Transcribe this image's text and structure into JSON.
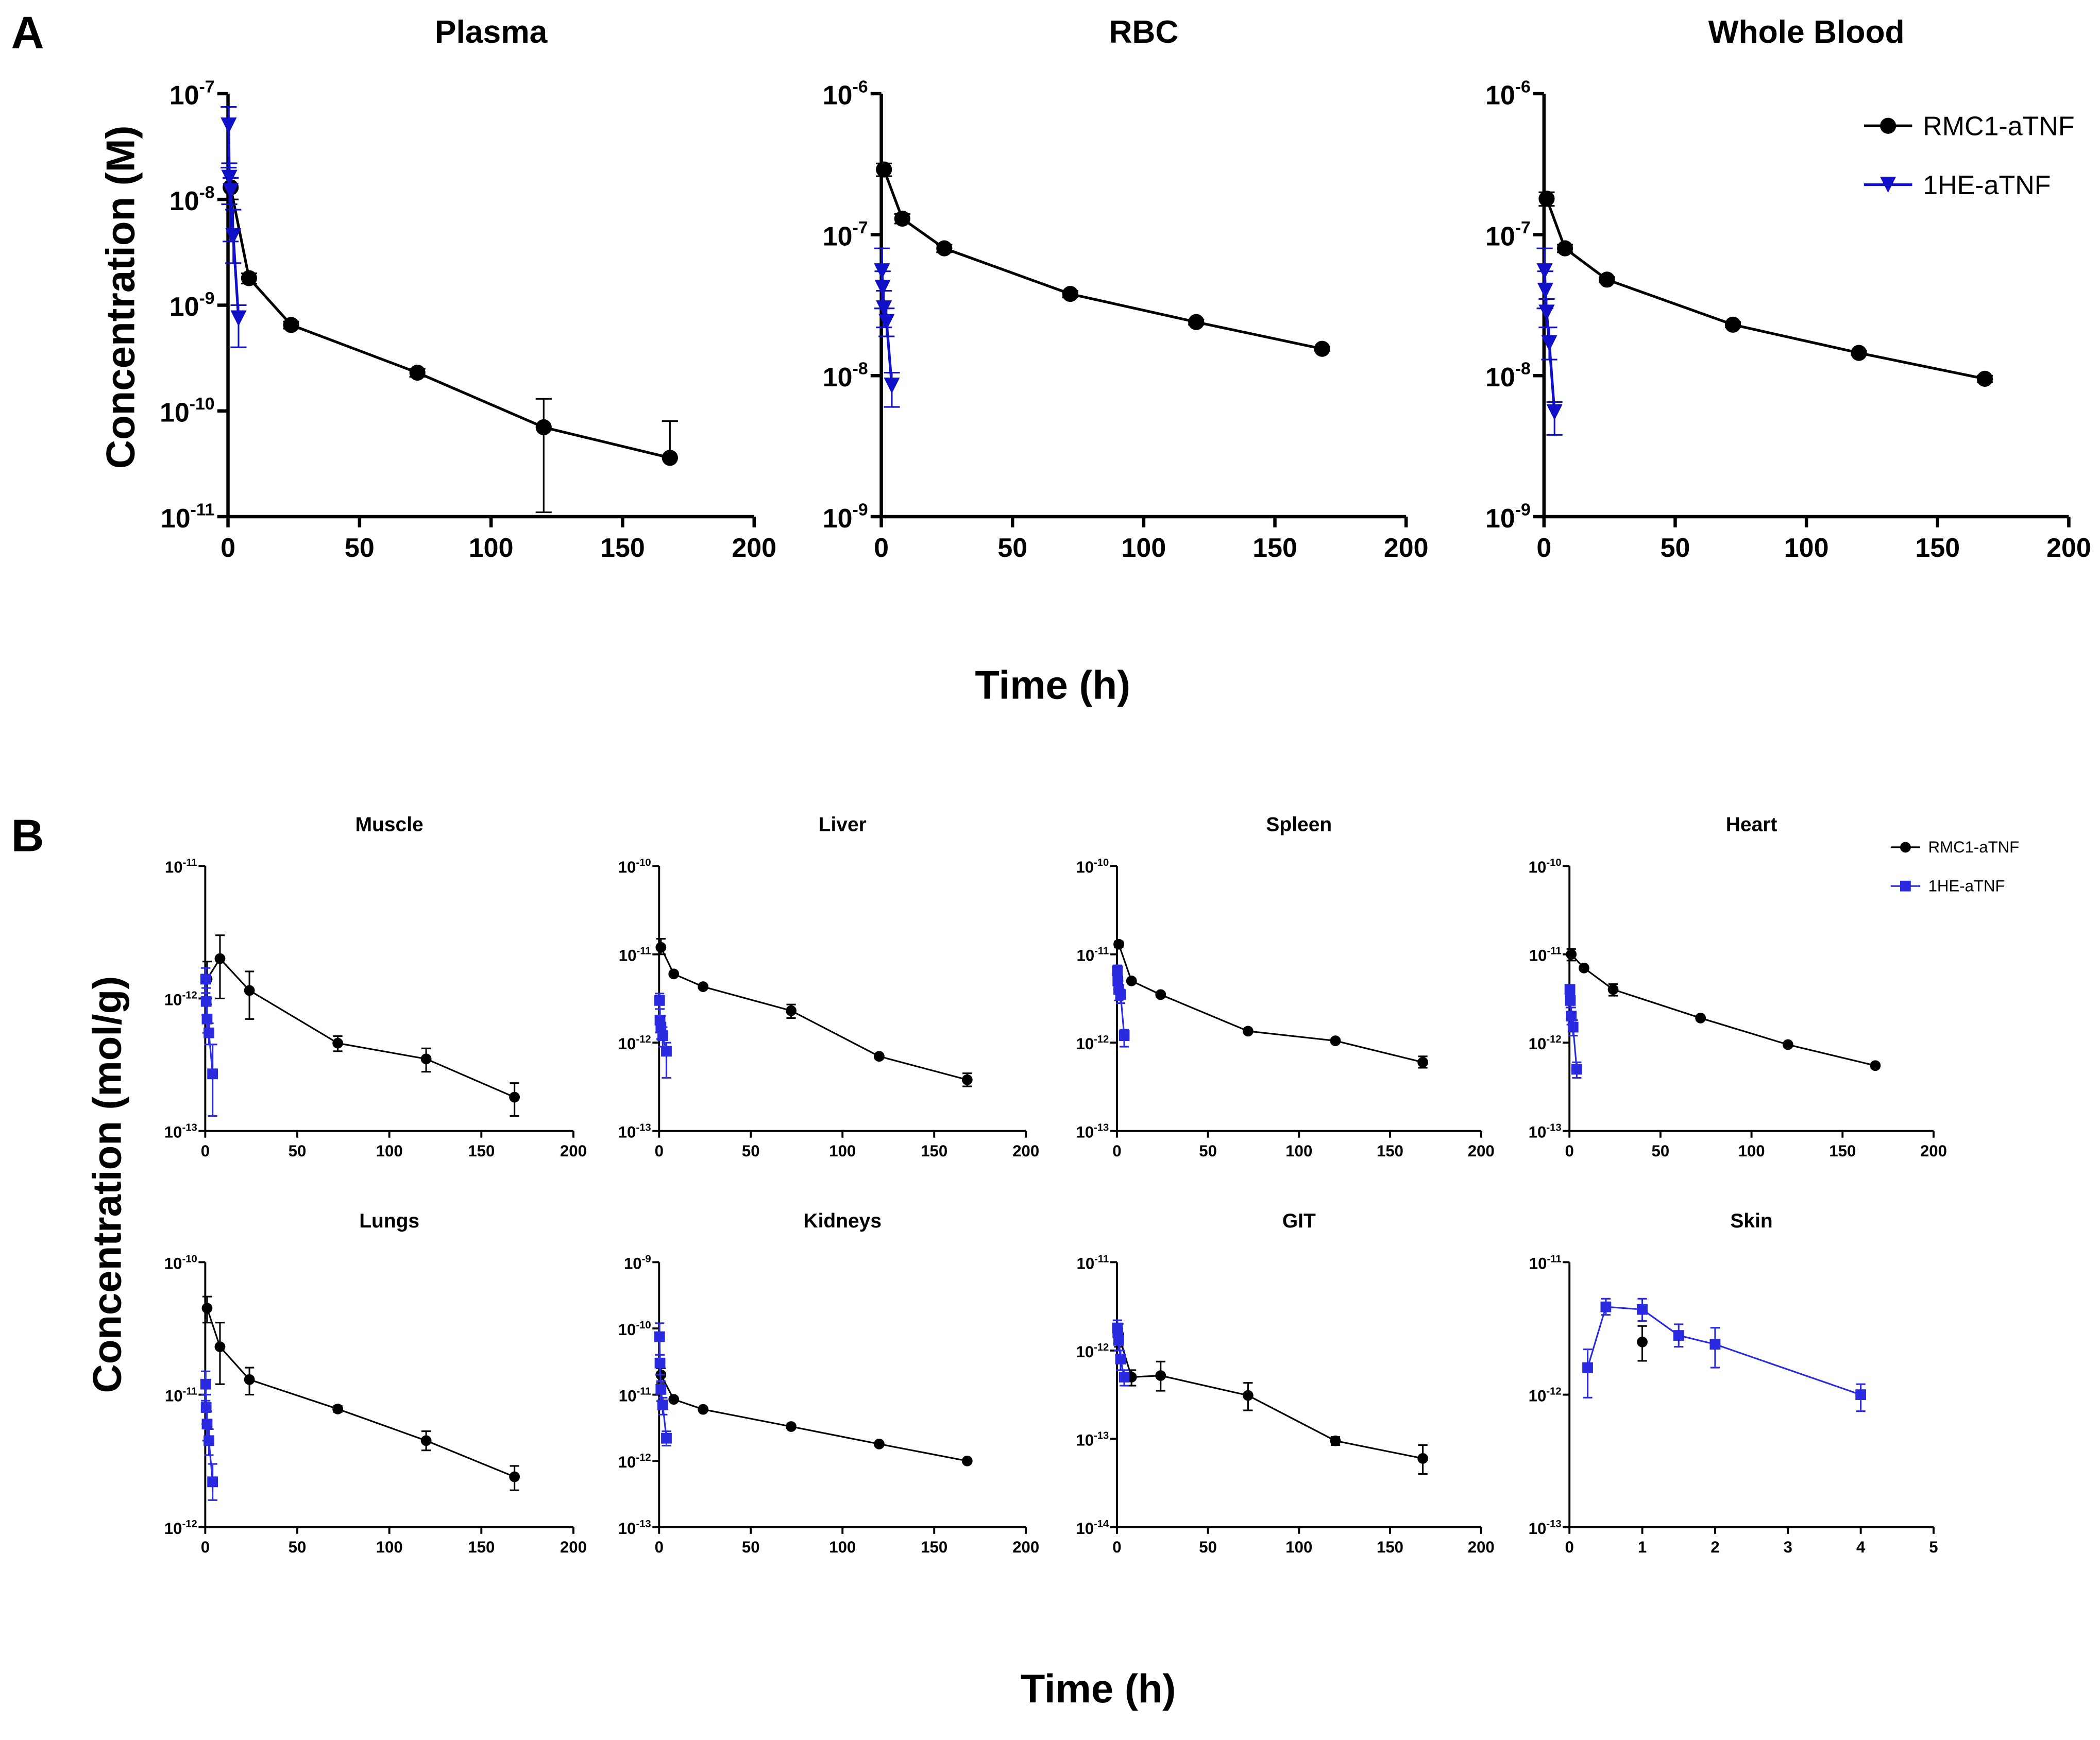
{
  "panel_labels": {
    "a": "A",
    "b": "B"
  },
  "panel_a": {
    "ylabel": "Concentration (M)",
    "xlabel": "Time (h)"
  },
  "panel_b": {
    "ylabel": "Concentration (mol/g)",
    "xlabel": "Time (h)"
  },
  "colors": {
    "rmc1": "#000000",
    "ohe_a": "#1010c8",
    "ohe_b": "#2a2ae0"
  },
  "chart_data": [
    {
      "type": "line",
      "panel": "A",
      "title": "Plasma",
      "yscale": "log",
      "ylim": [
        1e-11,
        1e-07
      ],
      "xlim": [
        0,
        200
      ],
      "xticks": [
        0,
        50,
        100,
        150,
        200
      ],
      "legend": null,
      "series": [
        {
          "name": "RMC1-aTNF",
          "marker": "circle",
          "x": [
            1,
            8,
            24,
            72,
            120,
            168
          ],
          "y": [
            1.3e-08,
            1.8e-09,
            6.5e-10,
            2.3e-10,
            7e-11,
            3.6e-11
          ],
          "err_hi": [
            1.6e-08,
            2e-09,
            7e-10,
            2.5e-10,
            1.3e-10,
            8e-11
          ],
          "err_lo": [
            1e-08,
            1.6e-09,
            6e-10,
            2.1e-10,
            1.1e-11,
            3.6e-11
          ]
        },
        {
          "name": "1HE-aTNF",
          "marker": "triangle-down",
          "x": [
            0.25,
            0.5,
            1,
            2,
            4
          ],
          "y": [
            5e-08,
            1.6e-08,
            1.2e-08,
            4.5e-09,
            7.5e-10
          ],
          "err_hi": [
            7.5e-08,
            2.2e-08,
            1.6e-08,
            8e-09,
            1e-09
          ],
          "err_lo": [
            2e-08,
            9e-09,
            4e-09,
            2.5e-09,
            4e-10
          ]
        }
      ]
    },
    {
      "type": "line",
      "panel": "A",
      "title": "RBC",
      "yscale": "log",
      "ylim": [
        1e-09,
        1e-06
      ],
      "xlim": [
        0,
        200
      ],
      "xticks": [
        0,
        50,
        100,
        150,
        200
      ],
      "legend": null,
      "series": [
        {
          "name": "RMC1-aTNF",
          "marker": "circle",
          "x": [
            1,
            8,
            24,
            72,
            120,
            168
          ],
          "y": [
            2.9e-07,
            1.3e-07,
            8e-08,
            3.8e-08,
            2.4e-08,
            1.55e-08
          ],
          "err_hi": [
            3.2e-07,
            1.4e-07,
            8.5e-08,
            4e-08,
            2.5e-08,
            1.6e-08
          ],
          "err_lo": [
            2.6e-07,
            1.2e-07,
            7.5e-08,
            3.6e-08,
            2.3e-08,
            1.5e-08
          ]
        },
        {
          "name": "1HE-aTNF",
          "marker": "triangle-down",
          "x": [
            0.25,
            0.5,
            1,
            2,
            4
          ],
          "y": [
            5.5e-08,
            4.2e-08,
            3e-08,
            2.4e-08,
            8.5e-09
          ],
          "err_hi": [
            8e-08,
            5.5e-08,
            4e-08,
            3e-08,
            1.05e-08
          ],
          "err_lo": [
            3e-08,
            3e-08,
            2.2e-08,
            1.9e-08,
            6e-09
          ]
        }
      ]
    },
    {
      "type": "line",
      "panel": "A",
      "title": "Whole Blood",
      "yscale": "log",
      "ylim": [
        1e-09,
        1e-06
      ],
      "xlim": [
        0,
        200
      ],
      "xticks": [
        0,
        50,
        100,
        150,
        200
      ],
      "legend": "top-right",
      "series": [
        {
          "name": "RMC1-aTNF",
          "marker": "circle",
          "x": [
            1,
            8,
            24,
            72,
            120,
            168
          ],
          "y": [
            1.8e-07,
            8e-08,
            4.8e-08,
            2.3e-08,
            1.45e-08,
            9.5e-09
          ],
          "err_hi": [
            2e-07,
            8.5e-08,
            5e-08,
            2.4e-08,
            1.5e-08,
            1e-08
          ],
          "err_lo": [
            1.6e-07,
            7.5e-08,
            4.6e-08,
            2.2e-08,
            1.4e-08,
            9e-09
          ]
        },
        {
          "name": "1HE-aTNF",
          "marker": "triangle-down",
          "x": [
            0.25,
            0.5,
            1,
            2,
            4
          ],
          "y": [
            5.5e-08,
            4e-08,
            2.8e-08,
            1.7e-08,
            5.5e-09
          ],
          "err_hi": [
            8e-08,
            5.5e-08,
            3.5e-08,
            2.2e-08,
            6.5e-09
          ],
          "err_lo": [
            3e-08,
            3e-08,
            2.2e-08,
            1.3e-08,
            3.8e-09
          ]
        }
      ]
    },
    {
      "type": "line",
      "panel": "B",
      "title": "Muscle",
      "yscale": "log",
      "ylim": [
        1e-13,
        1e-11
      ],
      "xlim": [
        0,
        200
      ],
      "xticks": [
        0,
        50,
        100,
        150,
        200
      ],
      "legend": null,
      "series": [
        {
          "name": "RMC1-aTNF",
          "marker": "circle",
          "x": [
            1,
            8,
            24,
            72,
            120,
            168
          ],
          "y": [
            1.4e-12,
            2e-12,
            1.15e-12,
            4.6e-13,
            3.5e-13,
            1.8e-13
          ],
          "err_hi": [
            1.9e-12,
            3e-12,
            1.6e-12,
            5.2e-13,
            4.2e-13,
            2.3e-13
          ],
          "err_lo": [
            1e-12,
            1e-12,
            7e-13,
            4e-13,
            2.8e-13,
            1.3e-13
          ]
        },
        {
          "name": "1HE-aTNF",
          "marker": "square",
          "x": [
            0.25,
            0.5,
            1,
            2,
            4
          ],
          "y": [
            1.4e-12,
            9.5e-13,
            7e-13,
            5.5e-13,
            2.7e-13
          ],
          "err_hi": [
            1.7e-12,
            1.2e-12,
            9e-13,
            6.5e-13,
            4.5e-13
          ],
          "err_lo": [
            1.1e-12,
            7.5e-13,
            5.5e-13,
            4.5e-13,
            1.3e-13
          ]
        }
      ]
    },
    {
      "type": "line",
      "panel": "B",
      "title": "Liver",
      "yscale": "log",
      "ylim": [
        1e-13,
        1e-10
      ],
      "xlim": [
        0,
        200
      ],
      "xticks": [
        0,
        50,
        100,
        150,
        200
      ],
      "legend": null,
      "series": [
        {
          "name": "RMC1-aTNF",
          "marker": "circle",
          "x": [
            1,
            8,
            24,
            72,
            120,
            168
          ],
          "y": [
            1.2e-11,
            6e-12,
            4.3e-12,
            2.3e-12,
            7e-13,
            3.8e-13
          ],
          "err_hi": [
            1.5e-11,
            6.3e-12,
            4.5e-12,
            2.7e-12,
            7.4e-13,
            4.5e-13
          ],
          "err_lo": [
            1e-11,
            5.7e-12,
            4.1e-12,
            1.9e-12,
            6.6e-13,
            3.2e-13
          ]
        },
        {
          "name": "1HE-aTNF",
          "marker": "square",
          "x": [
            0.25,
            0.5,
            1,
            2,
            4
          ],
          "y": [
            3e-12,
            1.8e-12,
            1.5e-12,
            1.2e-12,
            8e-13
          ],
          "err_hi": [
            3.6e-12,
            2.4e-12,
            2e-12,
            1.5e-12,
            1e-12
          ],
          "err_lo": [
            2.4e-12,
            1.3e-12,
            1.1e-12,
            9e-13,
            4e-13
          ]
        }
      ]
    },
    {
      "type": "line",
      "panel": "B",
      "title": "Spleen",
      "yscale": "log",
      "ylim": [
        1e-13,
        1e-10
      ],
      "xlim": [
        0,
        200
      ],
      "xticks": [
        0,
        50,
        100,
        150,
        200
      ],
      "legend": null,
      "series": [
        {
          "name": "RMC1-aTNF",
          "marker": "circle",
          "x": [
            1,
            8,
            24,
            72,
            120,
            168
          ],
          "y": [
            1.3e-11,
            5e-12,
            3.5e-12,
            1.35e-12,
            1.05e-12,
            6e-13
          ],
          "err_hi": [
            1.4e-11,
            5.3e-12,
            3.7e-12,
            1.4e-12,
            1.1e-12,
            7e-13
          ],
          "err_lo": [
            1.2e-11,
            4.7e-12,
            3.3e-12,
            1.3e-12,
            1e-12,
            5.2e-13
          ]
        },
        {
          "name": "1HE-aTNF",
          "marker": "square",
          "x": [
            0.25,
            0.5,
            1,
            2,
            4
          ],
          "y": [
            6.5e-12,
            5e-12,
            4e-12,
            3.5e-12,
            1.2e-12
          ],
          "err_hi": [
            7.5e-12,
            6e-12,
            5e-12,
            4e-12,
            1.4e-12
          ],
          "err_lo": [
            5.5e-12,
            4e-12,
            3e-12,
            2.8e-12,
            9e-13
          ]
        }
      ]
    },
    {
      "type": "line",
      "panel": "B",
      "title": "Heart",
      "yscale": "log",
      "ylim": [
        1e-13,
        1e-10
      ],
      "xlim": [
        0,
        200
      ],
      "xticks": [
        0,
        50,
        100,
        150,
        200
      ],
      "legend": "top-right",
      "series": [
        {
          "name": "RMC1-aTNF",
          "marker": "circle",
          "x": [
            1,
            8,
            24,
            72,
            120,
            168
          ],
          "y": [
            1e-11,
            7e-12,
            4e-12,
            1.9e-12,
            9.5e-13,
            5.5e-13
          ],
          "err_hi": [
            1.15e-11,
            7.4e-12,
            4.6e-12,
            2e-12,
            1e-12,
            5.8e-13
          ],
          "err_lo": [
            8.5e-12,
            6.6e-12,
            3.4e-12,
            1.8e-12,
            9e-13,
            5.2e-13
          ]
        },
        {
          "name": "1HE-aTNF",
          "marker": "square",
          "x": [
            0.25,
            0.5,
            1,
            2,
            4
          ],
          "y": [
            4e-12,
            3e-12,
            2e-12,
            1.5e-12,
            5e-13
          ],
          "err_hi": [
            4.5e-12,
            3.5e-12,
            2.5e-12,
            1.8e-12,
            6e-13
          ],
          "err_lo": [
            3.5e-12,
            2.5e-12,
            1.6e-12,
            1.2e-12,
            4e-13
          ]
        }
      ]
    },
    {
      "type": "line",
      "panel": "B",
      "title": "Lungs",
      "yscale": "log",
      "ylim": [
        1e-12,
        1e-10
      ],
      "xlim": [
        0,
        200
      ],
      "xticks": [
        0,
        50,
        100,
        150,
        200
      ],
      "legend": null,
      "series": [
        {
          "name": "RMC1-aTNF",
          "marker": "circle",
          "x": [
            1,
            8,
            24,
            72,
            120,
            168
          ],
          "y": [
            4.5e-11,
            2.3e-11,
            1.3e-11,
            7.8e-12,
            4.5e-12,
            2.4e-12
          ],
          "err_hi": [
            5.5e-11,
            3.5e-11,
            1.6e-11,
            8.2e-12,
            5.3e-12,
            2.9e-12
          ],
          "err_lo": [
            3.5e-11,
            1.2e-11,
            1e-11,
            7.4e-12,
            3.8e-12,
            1.9e-12
          ]
        },
        {
          "name": "1HE-aTNF",
          "marker": "square",
          "x": [
            0.25,
            0.5,
            1,
            2,
            4
          ],
          "y": [
            1.2e-11,
            8e-12,
            6e-12,
            4.5e-12,
            2.2e-12
          ],
          "err_hi": [
            1.5e-11,
            1e-11,
            7.5e-12,
            5.5e-12,
            3e-12
          ],
          "err_lo": [
            9e-12,
            6e-12,
            4.5e-12,
            3.5e-12,
            1.6e-12
          ]
        }
      ]
    },
    {
      "type": "line",
      "panel": "B",
      "title": "Kidneys",
      "yscale": "log",
      "ylim": [
        1e-13,
        1e-09
      ],
      "xlim": [
        0,
        200
      ],
      "xticks": [
        0,
        50,
        100,
        150,
        200
      ],
      "legend": null,
      "series": [
        {
          "name": "RMC1-aTNF",
          "marker": "circle",
          "x": [
            1,
            8,
            24,
            72,
            120,
            168
          ],
          "y": [
            2e-11,
            8.5e-12,
            6e-12,
            3.3e-12,
            1.8e-12,
            1e-12
          ],
          "err_hi": [
            2.5e-11,
            9e-12,
            6.3e-12,
            3.4e-12,
            1.9e-12,
            1.05e-12
          ],
          "err_lo": [
            1.5e-11,
            8e-12,
            5.7e-12,
            3.2e-12,
            1.7e-12,
            9.5e-13
          ]
        },
        {
          "name": "1HE-aTNF",
          "marker": "square",
          "x": [
            0.25,
            0.5,
            1,
            2,
            4
          ],
          "y": [
            7.5e-11,
            3e-11,
            1.2e-11,
            7e-12,
            2.2e-12
          ],
          "err_hi": [
            1.2e-10,
            4e-11,
            1.6e-11,
            9e-12,
            2.8e-12
          ],
          "err_lo": [
            4e-11,
            2e-11,
            8e-12,
            5e-12,
            1.7e-12
          ]
        }
      ]
    },
    {
      "type": "line",
      "panel": "B",
      "title": "GIT",
      "yscale": "log",
      "ylim": [
        1e-14,
        1e-11
      ],
      "xlim": [
        0,
        200
      ],
      "xticks": [
        0,
        50,
        100,
        150,
        200
      ],
      "legend": null,
      "series": [
        {
          "name": "RMC1-aTNF",
          "marker": "circle",
          "x": [
            1,
            8,
            24,
            72,
            120,
            168
          ],
          "y": [
            1.5e-12,
            5e-13,
            5.2e-13,
            3.1e-13,
            9.5e-14,
            6e-14
          ],
          "err_hi": [
            2e-12,
            6e-13,
            7.5e-13,
            4.3e-13,
            1.05e-13,
            8.5e-14
          ],
          "err_lo": [
            1.1e-12,
            4e-13,
            3.5e-13,
            2.1e-13,
            8.5e-14,
            4e-14
          ]
        },
        {
          "name": "1HE-aTNF",
          "marker": "square",
          "x": [
            0.25,
            0.5,
            1,
            2,
            4
          ],
          "y": [
            1.8e-12,
            1.6e-12,
            1.3e-12,
            8e-13,
            5e-13
          ],
          "err_hi": [
            2.2e-12,
            2e-12,
            1.6e-12,
            1e-12,
            6e-13
          ],
          "err_lo": [
            1.4e-12,
            1.2e-12,
            1e-12,
            6e-13,
            4e-13
          ]
        }
      ]
    },
    {
      "type": "line",
      "panel": "B",
      "title": "Skin",
      "yscale": "log",
      "ylim": [
        1e-13,
        1e-11
      ],
      "xlim": [
        0,
        5
      ],
      "xticks": [
        0,
        1,
        2,
        3,
        4,
        5
      ],
      "legend": null,
      "series": [
        {
          "name": "RMC1-aTNF",
          "marker": "circle",
          "x": [
            1
          ],
          "y": [
            2.5e-12
          ],
          "err_hi": [
            3.3e-12
          ],
          "err_lo": [
            1.8e-12
          ]
        },
        {
          "name": "1HE-aTNF",
          "marker": "square",
          "x": [
            0.25,
            0.5,
            1,
            1.5,
            2,
            4
          ],
          "y": [
            1.6e-12,
            4.6e-12,
            4.4e-12,
            2.8e-12,
            2.4e-12,
            1e-12
          ],
          "err_hi": [
            2.2e-12,
            5.3e-12,
            5.3e-12,
            3.4e-12,
            3.2e-12,
            1.2e-12
          ],
          "err_lo": [
            9.5e-13,
            4e-12,
            3.6e-12,
            2.3e-12,
            1.6e-12,
            7.5e-13
          ]
        }
      ]
    }
  ]
}
